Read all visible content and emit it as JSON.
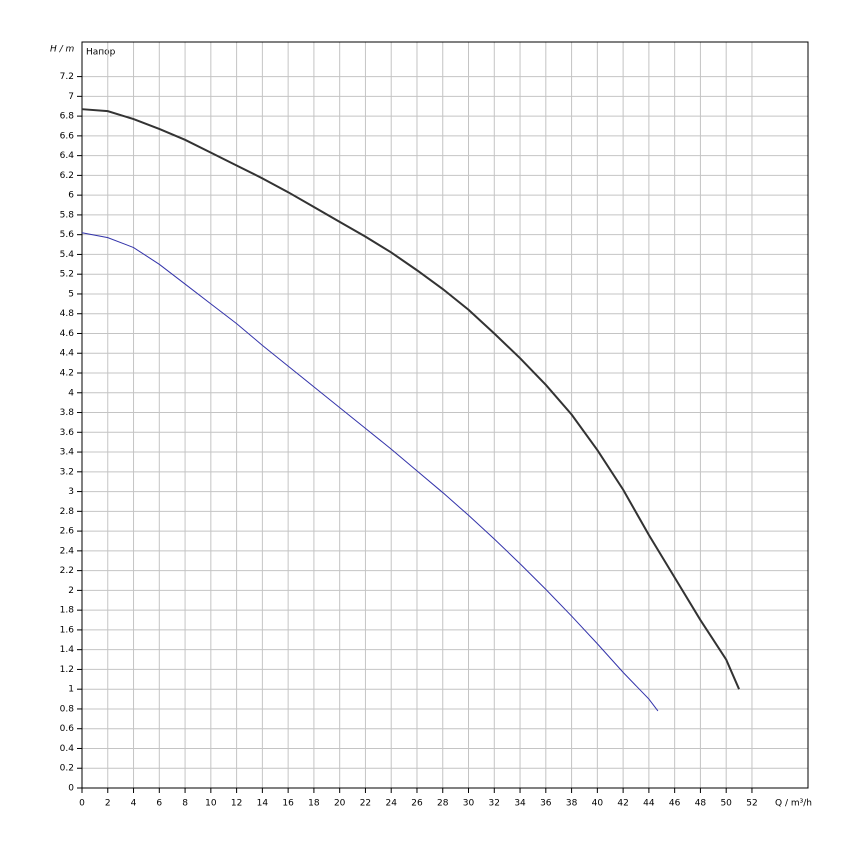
{
  "chart_data": {
    "type": "line",
    "title": "Напор",
    "y_label": "H / m",
    "x_label": "Q / m³/h",
    "xlim": [
      0,
      56.35
    ],
    "ylim": [
      0,
      7.55
    ],
    "xticks": [
      0,
      2,
      4,
      6,
      8,
      10,
      12,
      14,
      16,
      18,
      20,
      22,
      24,
      26,
      28,
      30,
      32,
      34,
      36,
      38,
      40,
      42,
      44,
      46,
      48,
      50,
      52
    ],
    "yticks": [
      0,
      0.2,
      0.4,
      0.6,
      0.8,
      1,
      1.2,
      1.4,
      1.6,
      1.8,
      2,
      2.2,
      2.4,
      2.6,
      2.8,
      3,
      3.2,
      3.4,
      3.6,
      3.8,
      4,
      4.2,
      4.4,
      4.6,
      4.8,
      5,
      5.2,
      5.4,
      5.6,
      5.8,
      6,
      6.2,
      6.4,
      6.6,
      6.8,
      7,
      7.2
    ],
    "grid": true,
    "series": [
      {
        "color": "#333333",
        "width": 2,
        "x": [
          0,
          2,
          4,
          6,
          8,
          10,
          12,
          14,
          16,
          18,
          20,
          22,
          24,
          26,
          28,
          30,
          32,
          34,
          36,
          38,
          40,
          42,
          44,
          46,
          48,
          50,
          51
        ],
        "values": [
          6.87,
          6.85,
          6.77,
          6.67,
          6.56,
          6.43,
          6.3,
          6.17,
          6.03,
          5.88,
          5.73,
          5.58,
          5.42,
          5.24,
          5.05,
          4.84,
          4.6,
          4.35,
          4.08,
          3.78,
          3.42,
          3.02,
          2.56,
          2.13,
          1.7,
          1.3,
          1.0
        ]
      },
      {
        "color": "#3333aa",
        "width": 1,
        "x": [
          0,
          2,
          4,
          6,
          8,
          10,
          12,
          14,
          16,
          18,
          20,
          22,
          24,
          26,
          28,
          30,
          32,
          34,
          36,
          38,
          40,
          42,
          44,
          44.7
        ],
        "values": [
          5.62,
          5.57,
          5.47,
          5.3,
          5.1,
          4.9,
          4.7,
          4.48,
          4.27,
          4.06,
          3.85,
          3.64,
          3.43,
          3.21,
          2.99,
          2.76,
          2.52,
          2.27,
          2.01,
          1.74,
          1.46,
          1.17,
          0.9,
          0.78
        ]
      }
    ]
  }
}
